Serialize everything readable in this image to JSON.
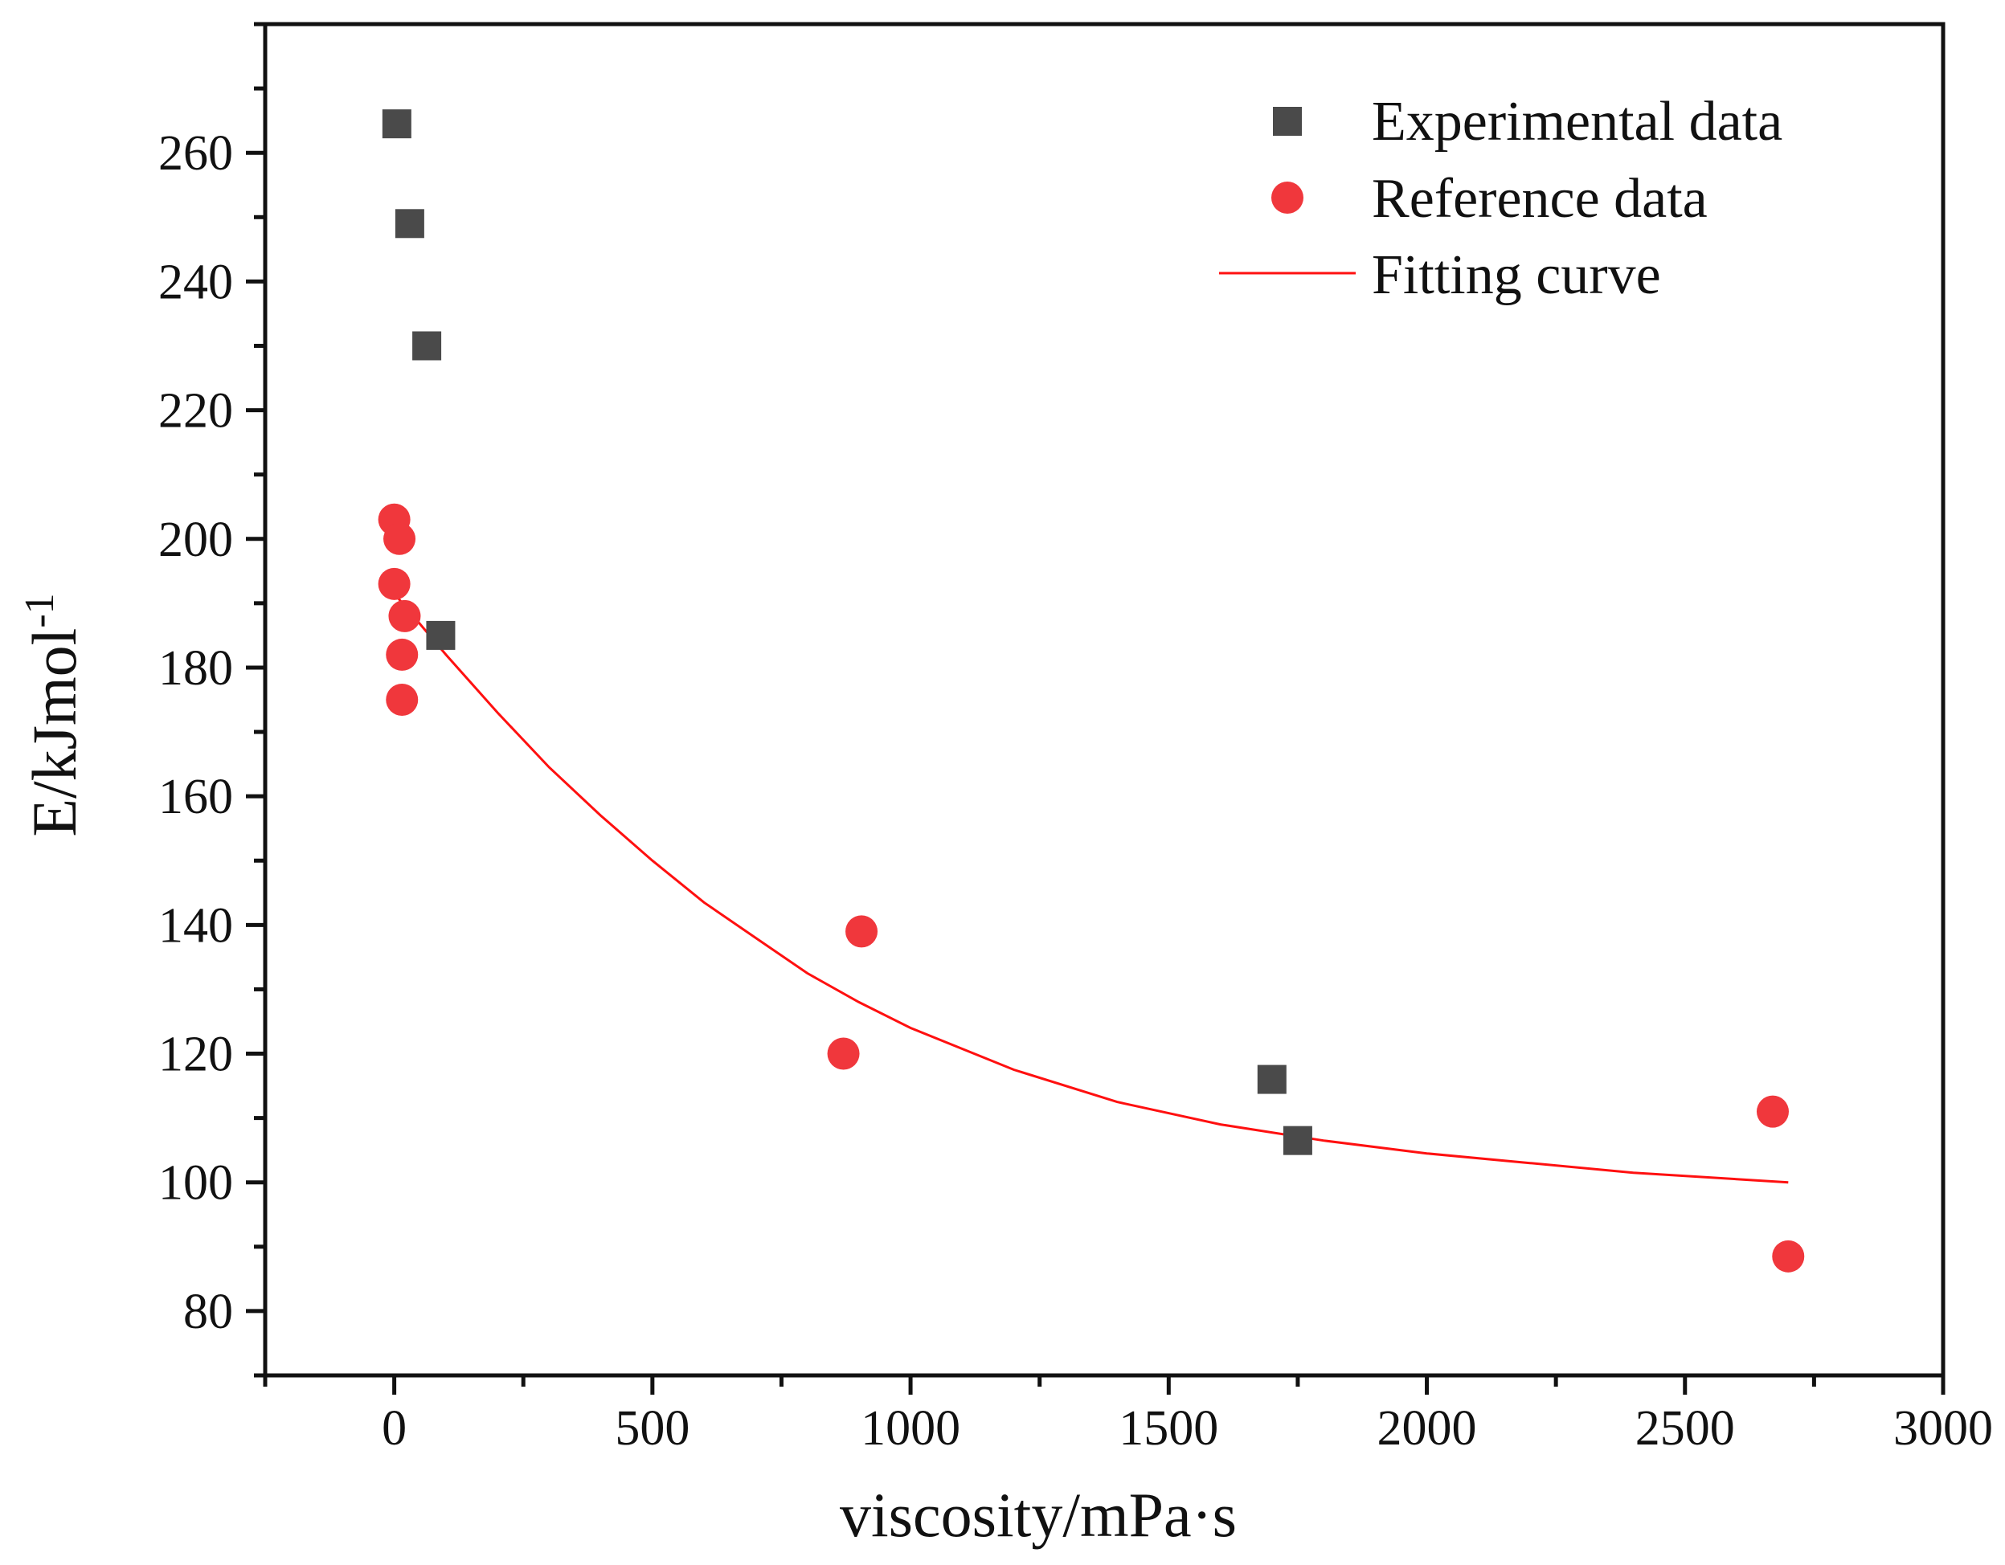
{
  "chart_data": {
    "type": "scatter",
    "title": "",
    "xlabel": "viscosity/mPa·s",
    "ylabel_main": "E/kJmol",
    "ylabel_sup": "-1",
    "xlim": [
      -250,
      3000
    ],
    "ylim": [
      70,
      280
    ],
    "x_ticks": [
      0,
      500,
      1000,
      1500,
      2000,
      2500,
      3000
    ],
    "x_minor_step": 250,
    "y_ticks": [
      80,
      100,
      120,
      140,
      160,
      180,
      200,
      220,
      240,
      260
    ],
    "y_minor_step": 10,
    "grid": false,
    "legend_position": "top-right",
    "colors": {
      "experimental": "#4a4a4a",
      "reference": "#f0373c",
      "fit": "#ff1010",
      "axis": "#111111"
    },
    "series": [
      {
        "name": "Experimental data",
        "marker": "square",
        "points": [
          {
            "x": 5,
            "y": 264.5
          },
          {
            "x": 30,
            "y": 249
          },
          {
            "x": 63,
            "y": 230
          },
          {
            "x": 90,
            "y": 185
          },
          {
            "x": 1700,
            "y": 116
          },
          {
            "x": 1750,
            "y": 106.5
          }
        ]
      },
      {
        "name": "Reference data",
        "marker": "circle",
        "points": [
          {
            "x": 0,
            "y": 203
          },
          {
            "x": 10,
            "y": 200
          },
          {
            "x": 0,
            "y": 193
          },
          {
            "x": 20,
            "y": 188
          },
          {
            "x": 15,
            "y": 182
          },
          {
            "x": 15,
            "y": 175
          },
          {
            "x": 870,
            "y": 120
          },
          {
            "x": 905,
            "y": 139
          },
          {
            "x": 2670,
            "y": 111
          },
          {
            "x": 2700,
            "y": 88.5
          }
        ]
      },
      {
        "name": "Fitting curve",
        "marker": "line",
        "points": [
          {
            "x": 0,
            "y": 191.5
          },
          {
            "x": 100,
            "y": 182
          },
          {
            "x": 200,
            "y": 173
          },
          {
            "x": 300,
            "y": 164.5
          },
          {
            "x": 400,
            "y": 157
          },
          {
            "x": 500,
            "y": 150
          },
          {
            "x": 600,
            "y": 143.5
          },
          {
            "x": 700,
            "y": 138
          },
          {
            "x": 800,
            "y": 132.5
          },
          {
            "x": 900,
            "y": 128
          },
          {
            "x": 1000,
            "y": 124
          },
          {
            "x": 1200,
            "y": 117.5
          },
          {
            "x": 1400,
            "y": 112.5
          },
          {
            "x": 1600,
            "y": 109
          },
          {
            "x": 1800,
            "y": 106.5
          },
          {
            "x": 2000,
            "y": 104.5
          },
          {
            "x": 2200,
            "y": 103
          },
          {
            "x": 2400,
            "y": 101.5
          },
          {
            "x": 2600,
            "y": 100.5
          },
          {
            "x": 2700,
            "y": 100
          }
        ]
      }
    ]
  }
}
